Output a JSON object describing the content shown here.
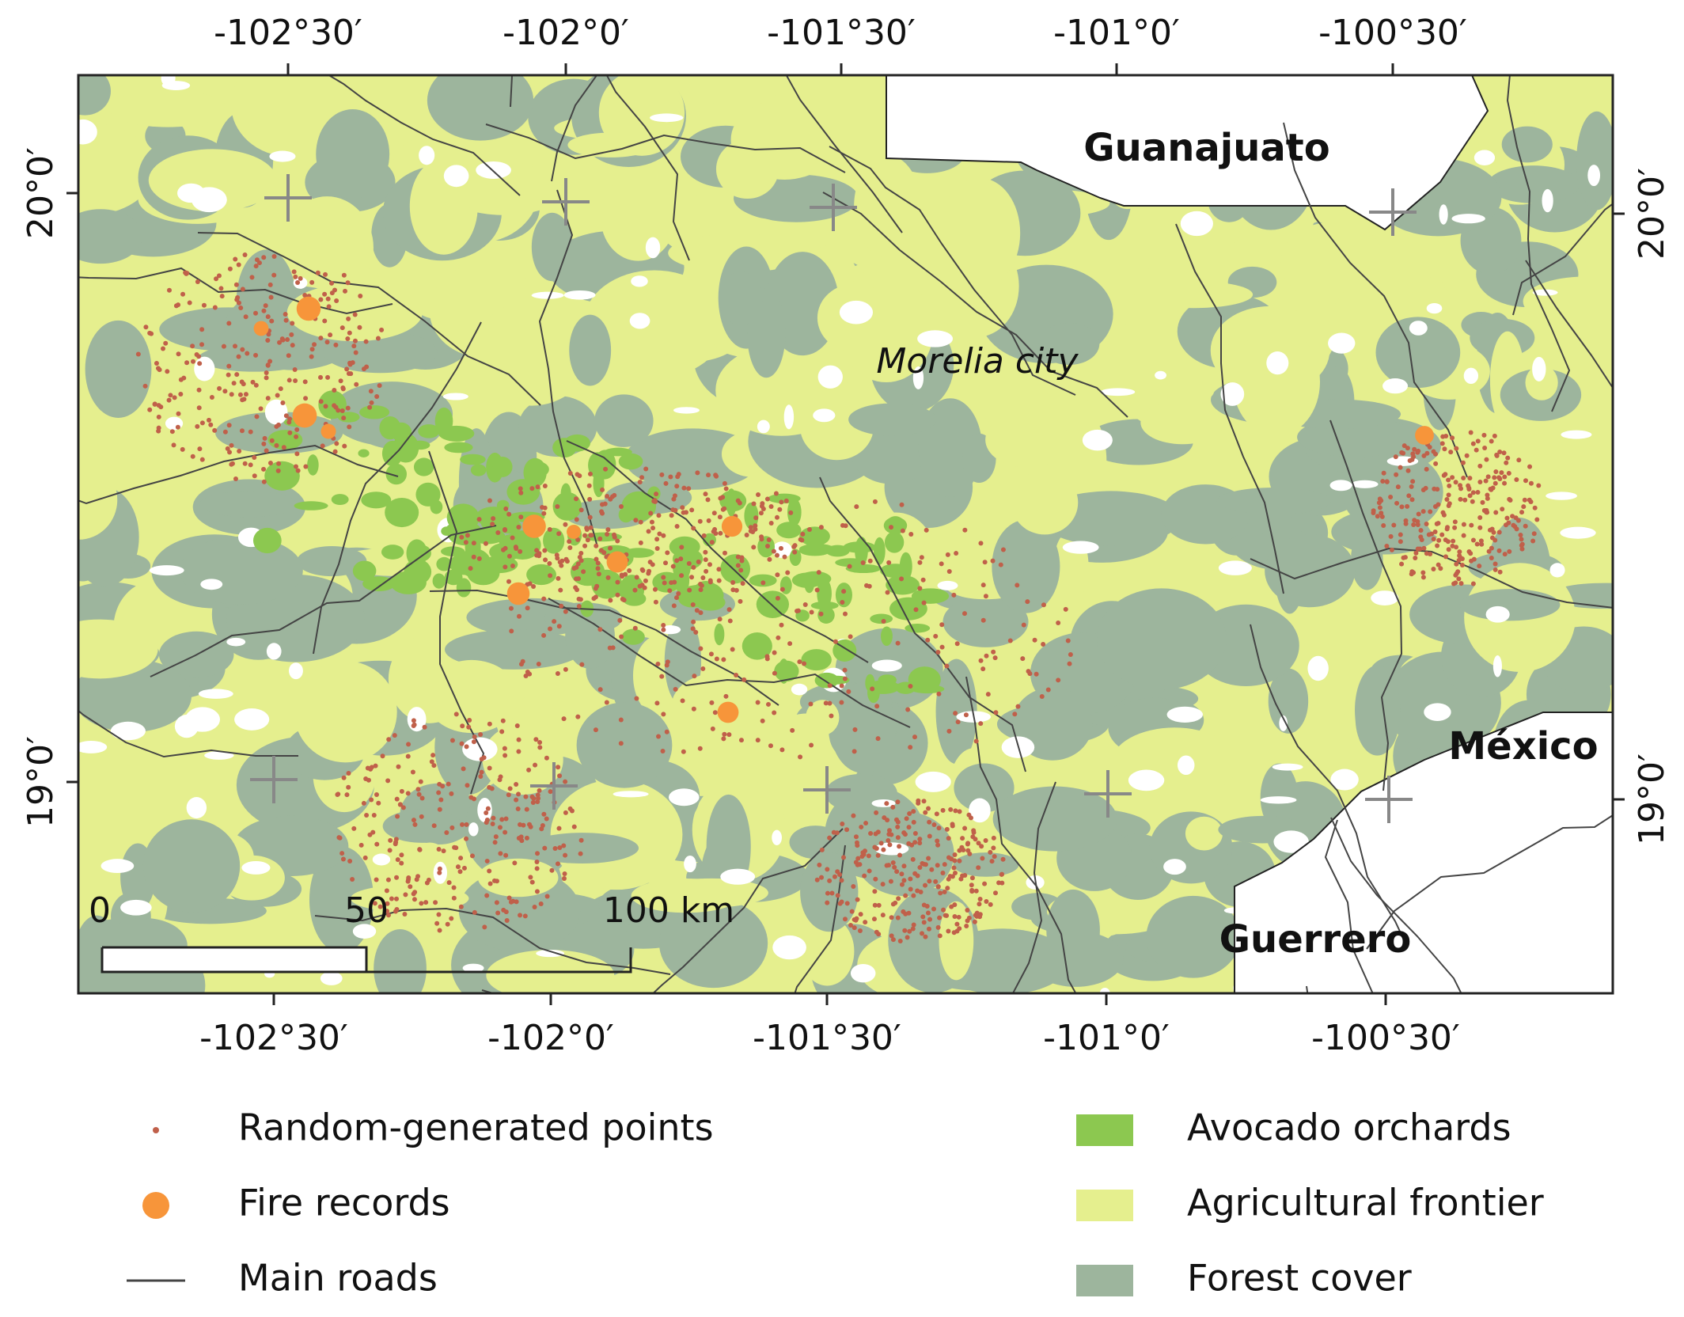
{
  "map": {
    "top_ticks": [
      "-102°30′",
      "-102°0′",
      "-101°30′",
      "-101°0′",
      "-100°30′"
    ],
    "bottom_ticks": [
      "-102°30′",
      "-102°0′",
      "-101°30′",
      "-101°0′",
      "-100°30′"
    ],
    "left_ticks": [
      "20°0′",
      "19°0′"
    ],
    "right_ticks": [
      "20°0′",
      "19°0′"
    ],
    "place_labels": [
      "Guanajuato",
      "Morelia city",
      "México",
      "Guerrero"
    ],
    "scale_bar": [
      "0",
      "50",
      "100 km"
    ],
    "legend": [
      {
        "label": "Random-generated points"
      },
      {
        "label": "Fire records"
      },
      {
        "label": "Main roads"
      },
      {
        "label": "Avocado orchards"
      },
      {
        "label": "Agricultural frontier"
      },
      {
        "label": "Forest cover"
      }
    ]
  }
}
